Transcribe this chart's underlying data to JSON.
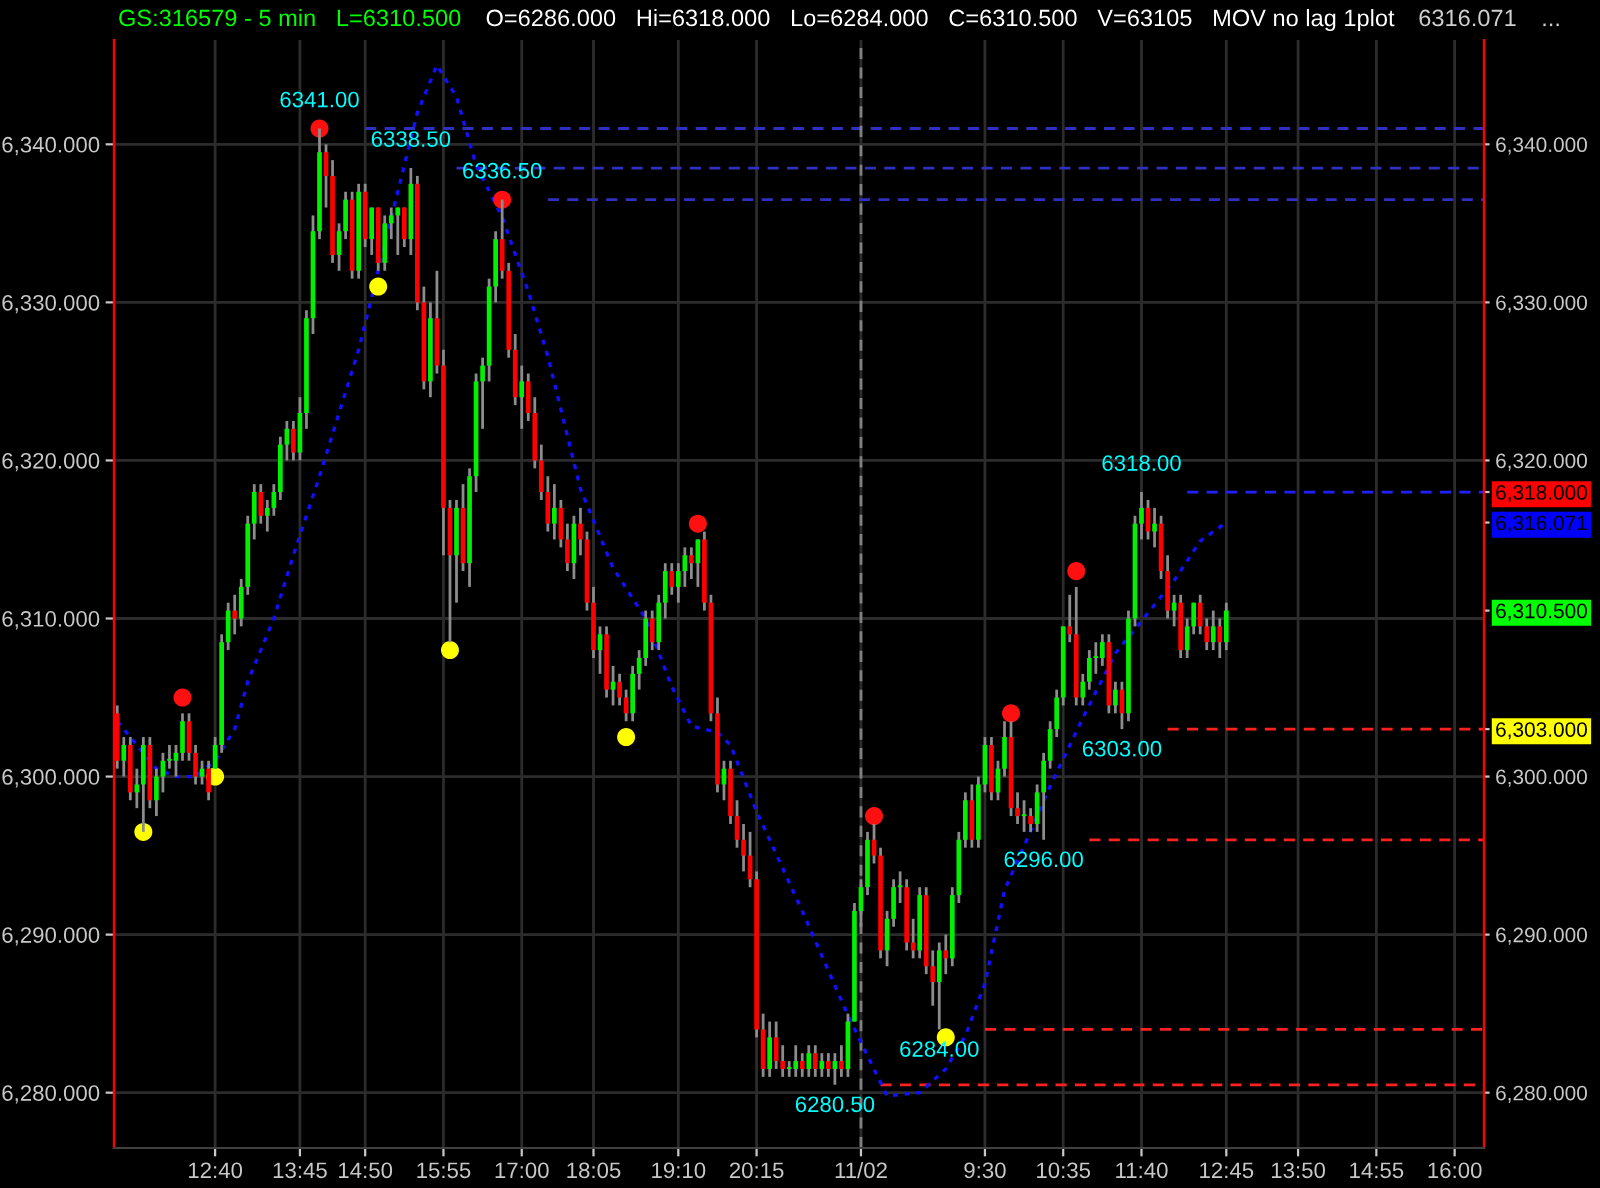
{
  "chart_data": {
    "type": "candlestick",
    "title": "GS:316579 - 5 min   L=6310.500",
    "subtitle": "O=6286.000   Hi=6318.000   Lo=6284.000   C=6310.500   V=63105   MOV no lag 1plot",
    "annotations": [
      "6316.071",
      "..."
    ],
    "categories": [
      null,
      null,
      null,
      null,
      null,
      null,
      null,
      null,
      null,
      null,
      null,
      null,
      null,
      null,
      null,
      "12:40",
      null,
      null,
      null,
      null,
      null,
      null,
      null,
      null,
      null,
      null,
      null,
      null,
      "13:45",
      null,
      null,
      null,
      null,
      null,
      null,
      null,
      null,
      null,
      "14:50",
      null,
      null,
      null,
      null,
      null,
      null,
      null,
      null,
      null,
      null,
      null,
      "15:55",
      null,
      null,
      null,
      null,
      null,
      null,
      null,
      null,
      null,
      null,
      null,
      "17:00",
      null,
      null,
      null,
      null,
      null,
      null,
      null,
      null,
      null,
      null,
      "18:05",
      null,
      null,
      null,
      null,
      null,
      null,
      null,
      null,
      null,
      null,
      null,
      null,
      "19:10",
      null,
      null,
      null,
      null,
      null,
      null,
      null,
      null,
      null,
      null,
      null,
      "20:15",
      null,
      null,
      null,
      null,
      null,
      null,
      null,
      null,
      null,
      null,
      null,
      null,
      null,
      null,
      null,
      "11/02",
      null,
      null,
      null,
      null,
      null,
      null,
      null,
      null,
      null,
      null,
      null,
      null,
      null,
      null,
      null,
      null,
      null,
      null,
      "9:30",
      null,
      null,
      null,
      null,
      null,
      null,
      null,
      null,
      null,
      null,
      null,
      "10:35",
      null,
      null,
      null,
      null,
      null,
      null,
      null,
      null,
      null,
      null,
      null,
      "11:40",
      null,
      null,
      null,
      null,
      null,
      null,
      null,
      null,
      null,
      null,
      null,
      null,
      "12:45",
      null,
      null,
      null,
      null,
      null,
      null,
      null,
      null,
      null,
      null,
      "13:50",
      null,
      null,
      null,
      null,
      null,
      null,
      null,
      null,
      null,
      null,
      null,
      "14:55",
      null,
      null,
      null,
      null,
      null,
      null,
      null,
      null,
      null,
      null,
      null,
      "16:00",
      null,
      null,
      null,
      null
    ],
    "ohlc": [
      [
        6304,
        6304.5,
        6300.5,
        6301
      ],
      [
        6301,
        6302.5,
        6300,
        6302
      ],
      [
        6302,
        6302.5,
        6298.5,
        6299
      ],
      [
        6299,
        6300.5,
        6298,
        6299.5
      ],
      [
        6299.5,
        6302.5,
        6296.5,
        6302
      ],
      [
        6302,
        6302.5,
        6298,
        6298.5
      ],
      [
        6298.5,
        6300.5,
        6297.5,
        6300
      ],
      [
        6300,
        6301.5,
        6299,
        6301
      ],
      [
        6301,
        6302,
        6300.5,
        6301
      ],
      [
        6301,
        6302,
        6300,
        6301.5
      ],
      [
        6301.5,
        6304,
        6301,
        6303.5
      ],
      [
        6303.5,
        6304,
        6301,
        6301.5
      ],
      [
        6301.5,
        6302,
        6299.5,
        6300
      ],
      [
        6300,
        6301,
        6299.5,
        6300.5
      ],
      [
        6300.5,
        6301,
        6298.5,
        6299
      ],
      [
        6300.5,
        6302.5,
        6300.5,
        6302
      ],
      [
        6302,
        6309,
        6301.5,
        6308.5
      ],
      [
        6308.5,
        6311,
        6308,
        6310.5
      ],
      [
        6310.5,
        6311.5,
        6309,
        6310
      ],
      [
        6310,
        6312.5,
        6309.5,
        6312
      ],
      [
        6312,
        6316.5,
        6311.5,
        6316
      ],
      [
        6316,
        6318.5,
        6315,
        6318
      ],
      [
        6318,
        6318.5,
        6316,
        6316.5
      ],
      [
        6316.5,
        6317.5,
        6315.5,
        6317
      ],
      [
        6317,
        6318.5,
        6316.5,
        6318
      ],
      [
        6318,
        6321.5,
        6317.5,
        6321
      ],
      [
        6321,
        6322.5,
        6320,
        6322
      ],
      [
        6322,
        6322.5,
        6320,
        6320.5
      ],
      [
        6320.5,
        6324,
        6320,
        6323
      ],
      [
        6323,
        6329.5,
        6322,
        6329
      ],
      [
        6329,
        6335.5,
        6328,
        6334.5
      ],
      [
        6334.5,
        6341,
        6334,
        6339.5
      ],
      [
        6339.5,
        6340,
        6336,
        6338
      ],
      [
        6338,
        6339,
        6332.5,
        6333
      ],
      [
        6333,
        6335,
        6332,
        6334.5
      ],
      [
        6334.5,
        6337,
        6334,
        6336.5
      ],
      [
        6336.5,
        6337,
        6331.5,
        6332
      ],
      [
        6332,
        6337.5,
        6331.5,
        6337
      ],
      [
        6337,
        6337.5,
        6333.5,
        6334
      ],
      [
        6334,
        6336,
        6333,
        6336
      ],
      [
        6336,
        6336,
        6332,
        6332.5
      ],
      [
        6332.5,
        6335.5,
        6332,
        6335
      ],
      [
        6335,
        6336,
        6334,
        6335.5
      ],
      [
        6335.5,
        6336,
        6333,
        6336
      ],
      [
        6336,
        6336,
        6333.5,
        6334
      ],
      [
        6334,
        6338.5,
        6333,
        6337.5
      ],
      [
        6337.5,
        6338,
        6329.5,
        6330
      ],
      [
        6330,
        6331,
        6324.5,
        6325
      ],
      [
        6325,
        6330,
        6324,
        6329
      ],
      [
        6329,
        6332,
        6325.5,
        6326
      ],
      [
        6326,
        6327,
        6314,
        6317
      ],
      [
        6317,
        6317.5,
        6308.5,
        6314
      ],
      [
        6314,
        6317.5,
        6311,
        6317
      ],
      [
        6317,
        6318.5,
        6313,
        6313.5
      ],
      [
        6313.5,
        6319.5,
        6312,
        6319
      ],
      [
        6319,
        6325.5,
        6318,
        6325
      ],
      [
        6325,
        6326.5,
        6322,
        6326
      ],
      [
        6326,
        6331.5,
        6325,
        6331
      ],
      [
        6331,
        6334.5,
        6330,
        6334
      ],
      [
        6334,
        6336.5,
        6331.5,
        6332
      ],
      [
        6332,
        6332.5,
        6326.5,
        6327
      ],
      [
        6327,
        6328,
        6323.5,
        6324
      ],
      [
        6324,
        6326,
        6322,
        6325
      ],
      [
        6325,
        6325.5,
        6322.5,
        6323
      ],
      [
        6323,
        6324,
        6319.5,
        6320
      ],
      [
        6320,
        6321,
        6317.5,
        6318
      ],
      [
        6318,
        6319,
        6315.5,
        6316
      ],
      [
        6316,
        6318.5,
        6315,
        6317
      ],
      [
        6317,
        6317.5,
        6314.5,
        6315
      ],
      [
        6315,
        6316,
        6313,
        6313.5
      ],
      [
        6313.5,
        6316.5,
        6312.5,
        6316
      ],
      [
        6316,
        6317,
        6314,
        6315
      ],
      [
        6315,
        6315.5,
        6310.5,
        6311
      ],
      [
        6311,
        6312,
        6307.5,
        6308
      ],
      [
        6308,
        6309.5,
        6306.5,
        6309
      ],
      [
        6309,
        6309.5,
        6305,
        6305.5
      ],
      [
        6305.5,
        6307,
        6304.5,
        6306
      ],
      [
        6306,
        6306.5,
        6304.5,
        6305
      ],
      [
        6305,
        6305.5,
        6303.5,
        6304
      ],
      [
        6304,
        6307,
        6303.5,
        6306.5
      ],
      [
        6306.5,
        6308,
        6305.5,
        6307.5
      ],
      [
        6307.5,
        6310.5,
        6307,
        6310
      ],
      [
        6310,
        6310.5,
        6308,
        6308.5
      ],
      [
        6308.5,
        6311.5,
        6308,
        6311
      ],
      [
        6311,
        6313.5,
        6310,
        6313
      ],
      [
        6313,
        6313.5,
        6311.5,
        6312
      ],
      [
        6312,
        6313.5,
        6311,
        6313
      ],
      [
        6313,
        6314.5,
        6312,
        6314
      ],
      [
        6314,
        6314.5,
        6312.5,
        6313.5
      ],
      [
        6313.5,
        6315,
        6312,
        6315
      ],
      [
        6315,
        6315.5,
        6310.5,
        6311
      ],
      [
        6311,
        6311.5,
        6303.5,
        6304
      ],
      [
        6304,
        6305,
        6299,
        6299.5
      ],
      [
        6299.5,
        6301,
        6298.5,
        6300.5
      ],
      [
        6300.5,
        6301,
        6297,
        6297.5
      ],
      [
        6297.5,
        6298.5,
        6295.5,
        6296
      ],
      [
        6296,
        6297,
        6294,
        6295
      ],
      [
        6295,
        6296.5,
        6293,
        6293.5
      ],
      [
        6293.5,
        6294,
        6283.5,
        6284
      ],
      [
        6284,
        6285,
        6281,
        6281.5
      ],
      [
        6281.5,
        6284.5,
        6281,
        6283.5
      ],
      [
        6283.5,
        6284.5,
        6281.5,
        6282
      ],
      [
        6282,
        6283,
        6281,
        6281.5
      ],
      [
        6281.5,
        6282,
        6281,
        6281.5
      ],
      [
        6281.5,
        6283,
        6281,
        6282
      ],
      [
        6282,
        6282.5,
        6281,
        6281.5
      ],
      [
        6281.5,
        6283,
        6281,
        6282.5
      ],
      [
        6282.5,
        6283,
        6281,
        6281.5
      ],
      [
        6281.5,
        6282.5,
        6281,
        6282
      ],
      [
        6282,
        6282.5,
        6281,
        6281.5
      ],
      [
        6281.5,
        6282.5,
        6280.5,
        6282
      ],
      [
        6282,
        6283,
        6281,
        6281.5
      ],
      [
        6281.5,
        6285,
        6281,
        6284.5
      ],
      [
        6284.5,
        6292,
        6284.5,
        6291.5
      ],
      [
        6291.5,
        6293.5,
        6290.5,
        6293
      ],
      [
        6293,
        6296.5,
        6292.5,
        6296
      ],
      [
        6296,
        6297,
        6294.5,
        6295
      ],
      [
        6295,
        6295.5,
        6288.5,
        6289
      ],
      [
        6289,
        6291.5,
        6288,
        6291
      ],
      [
        6291,
        6293.5,
        6290.5,
        6293
      ],
      [
        6293,
        6294,
        6292,
        6293
      ],
      [
        6293,
        6293.5,
        6289,
        6289.5
      ],
      [
        6289.5,
        6291,
        6288.5,
        6289
      ],
      [
        6289,
        6293,
        6288.5,
        6292.5
      ],
      [
        6292.5,
        6293,
        6287.5,
        6288
      ],
      [
        6288,
        6289,
        6285.5,
        6287
      ],
      [
        6287,
        6289.5,
        6284,
        6289
      ],
      [
        6289,
        6290,
        6287.5,
        6288.5
      ],
      [
        6288.5,
        6293,
        6288,
        6292.5
      ],
      [
        6292.5,
        6296.5,
        6292,
        6296
      ],
      [
        6296,
        6299,
        6295.5,
        6298.5
      ],
      [
        6298.5,
        6299.5,
        6295.5,
        6296
      ],
      [
        6296,
        6300,
        6295.5,
        6299.5
      ],
      [
        6299.5,
        6302.5,
        6299,
        6302
      ],
      [
        6302,
        6302.5,
        6298.5,
        6299
      ],
      [
        6299,
        6301,
        6298.5,
        6300.5
      ],
      [
        6300.5,
        6303.5,
        6300,
        6302.5
      ],
      [
        6302.5,
        6303.5,
        6297.5,
        6298
      ],
      [
        6298,
        6299,
        6297,
        6297.5
      ],
      [
        6297.5,
        6298.5,
        6296.5,
        6297.5
      ],
      [
        6297.5,
        6298,
        6296.5,
        6297
      ],
      [
        6297,
        6299.5,
        6296.5,
        6299
      ],
      [
        6299,
        6301.5,
        6296,
        6301
      ],
      [
        6301,
        6303.5,
        6300.5,
        6303
      ],
      [
        6303,
        6305.5,
        6302.5,
        6305
      ],
      [
        6305,
        6309.5,
        6304.5,
        6309.5
      ],
      [
        6309.5,
        6311.5,
        6308.5,
        6309
      ],
      [
        6309,
        6312,
        6304.5,
        6305
      ],
      [
        6305,
        6306.5,
        6304.5,
        6306
      ],
      [
        6306,
        6308,
        6305.5,
        6307.5
      ],
      [
        6307.5,
        6308.5,
        6306.5,
        6307.5
      ],
      [
        6307.5,
        6309,
        6307,
        6308.5
      ],
      [
        6308.5,
        6309,
        6304,
        6304.5
      ],
      [
        6304.5,
        6306,
        6304,
        6305.5
      ],
      [
        6305.5,
        6306,
        6303,
        6304
      ],
      [
        6304,
        6310.5,
        6303.5,
        6310
      ],
      [
        6310,
        6316.5,
        6309.5,
        6316
      ],
      [
        6316,
        6318,
        6315,
        6317
      ],
      [
        6317,
        6317.5,
        6315,
        6315.5
      ],
      [
        6315.5,
        6317,
        6314.5,
        6316
      ],
      [
        6316,
        6316.5,
        6312.5,
        6313
      ],
      [
        6313,
        6314,
        6310,
        6310.5
      ],
      [
        6310.5,
        6311.5,
        6309.5,
        6311
      ],
      [
        6311,
        6311.5,
        6307.5,
        6308
      ],
      [
        6308,
        6310,
        6307.5,
        6309.5
      ],
      [
        6309.5,
        6311,
        6309,
        6311
      ],
      [
        6311,
        6311.5,
        6309,
        6309.5
      ],
      [
        6309.5,
        6310,
        6308,
        6308.5
      ],
      [
        6308.5,
        6310.5,
        6308,
        6309.5
      ],
      [
        6309.5,
        6310,
        6307.5,
        6308.5
      ],
      [
        6308.5,
        6311,
        6308,
        6310.5
      ],
      null,
      null,
      null,
      null,
      null,
      null,
      null,
      null,
      null,
      null,
      null,
      null,
      null,
      null,
      null,
      null,
      null,
      null,
      null,
      null,
      null,
      null,
      null,
      null,
      null,
      null,
      null,
      null,
      null,
      null,
      null,
      null,
      null,
      null,
      null,
      null,
      null,
      null,
      null
    ],
    "series": [
      {
        "type": "line",
        "color": "#1010ff",
        "line_style": "dotted",
        "values": [
          6303.5,
          null,
          null,
          6302,
          null,
          null,
          6300.5,
          null,
          null,
          6300,
          null,
          null,
          6300,
          null,
          null,
          6301,
          null,
          null,
          6303,
          null,
          6306,
          null,
          null,
          null,
          6310,
          null,
          null,
          6314,
          null,
          null,
          null,
          6319,
          null,
          null,
          6323,
          null,
          null,
          6327,
          null,
          null,
          6332,
          null,
          null,
          6337,
          null,
          null,
          6342,
          null,
          null,
          6345,
          null,
          null,
          6343,
          null,
          null,
          6338.7,
          null,
          null,
          null,
          6335.4,
          null,
          null,
          null,
          6330.7,
          null,
          null,
          6326.6,
          null,
          null,
          null,
          null,
          6318.2,
          null,
          null,
          null,
          null,
          6313.2,
          null,
          null,
          null,
          null,
          6310,
          null,
          null,
          null,
          6305.7,
          null,
          null,
          6303.2,
          null,
          null,
          null,
          6302.8,
          null,
          6302,
          null,
          null,
          null,
          6297.8,
          null,
          null,
          null,
          null,
          null,
          null,
          6291.5,
          null,
          null,
          null,
          null,
          null,
          null,
          6284.9,
          null,
          null,
          null,
          null,
          null,
          6279.8,
          null,
          null,
          null,
          null,
          6280,
          null,
          null,
          null,
          6281.5,
          null,
          null,
          6283.6,
          null,
          null,
          6286.9,
          null,
          null,
          6292.8,
          null,
          null,
          6295.6,
          null,
          null,
          null,
          6299.4,
          null,
          null,
          null,
          null,
          6303.7,
          null,
          null,
          null,
          null,
          6307.8,
          null,
          null,
          null,
          null,
          null,
          null,
          null,
          null,
          6312.4,
          null,
          null,
          null,
          6314.9,
          null,
          null,
          null,
          6316.071,
          null,
          null,
          null,
          null,
          null,
          null,
          null,
          null,
          null,
          null,
          null,
          null,
          null,
          null,
          null,
          null,
          null,
          null,
          null,
          null,
          null,
          null,
          null,
          null,
          null,
          null,
          null,
          null,
          null,
          null,
          null,
          null,
          null,
          null,
          null,
          null,
          null,
          null,
          null
        ]
      },
      {
        "type": "scatter",
        "color": "#ff1010",
        "marker": "circle",
        "values": [
          null,
          null,
          null,
          null,
          null,
          null,
          null,
          null,
          null,
          null,
          6305,
          null,
          null,
          null,
          null,
          null,
          null,
          null,
          null,
          null,
          null,
          null,
          null,
          null,
          null,
          null,
          null,
          null,
          null,
          null,
          null,
          6341,
          null,
          null,
          null,
          null,
          null,
          null,
          null,
          null,
          null,
          null,
          null,
          null,
          null,
          null,
          null,
          null,
          null,
          null,
          null,
          null,
          null,
          null,
          null,
          null,
          null,
          null,
          null,
          6336.5,
          null,
          null,
          null,
          null,
          null,
          null,
          null,
          null,
          null,
          null,
          null,
          null,
          null,
          null,
          null,
          null,
          null,
          null,
          null,
          null,
          null,
          null,
          null,
          null,
          null,
          null,
          null,
          null,
          null,
          6316,
          null,
          null,
          null,
          null,
          null,
          null,
          null,
          null,
          null,
          null,
          null,
          null,
          null,
          null,
          null,
          null,
          null,
          null,
          null,
          null,
          null,
          null,
          null,
          null,
          null,
          null,
          6297.5,
          null,
          null,
          null,
          null,
          null,
          null,
          null,
          null,
          null,
          null,
          null,
          null,
          null,
          null,
          null,
          null,
          null,
          null,
          null,
          null,
          6304,
          null,
          null,
          null,
          null,
          null,
          null,
          null,
          null,
          null,
          6313,
          null,
          null,
          null,
          null,
          null,
          null,
          null,
          null,
          null,
          null,
          null,
          null,
          null,
          null,
          null,
          null,
          null,
          null,
          null,
          null,
          null,
          null,
          null,
          null,
          null,
          null,
          null,
          null,
          null,
          null,
          null,
          null,
          null,
          null,
          null,
          null,
          null,
          null,
          null,
          null,
          null,
          null,
          null,
          null,
          null,
          null,
          null,
          null,
          null,
          null,
          null,
          null,
          null,
          null,
          null,
          null,
          null,
          null,
          null,
          null,
          null,
          null
        ]
      },
      {
        "type": "scatter",
        "color": "#ffff00",
        "marker": "circle",
        "values": [
          null,
          null,
          null,
          null,
          6296.5,
          null,
          null,
          null,
          null,
          null,
          null,
          null,
          null,
          null,
          null,
          6300,
          null,
          null,
          null,
          null,
          null,
          null,
          null,
          null,
          null,
          null,
          null,
          null,
          null,
          null,
          null,
          null,
          null,
          null,
          null,
          null,
          null,
          null,
          null,
          null,
          6331,
          null,
          null,
          null,
          null,
          null,
          null,
          null,
          null,
          null,
          null,
          6308,
          null,
          null,
          null,
          null,
          null,
          null,
          null,
          null,
          null,
          null,
          null,
          null,
          null,
          null,
          null,
          null,
          null,
          null,
          null,
          null,
          null,
          null,
          null,
          null,
          null,
          null,
          6302.5,
          null,
          null,
          null,
          null,
          null,
          null,
          null,
          null,
          null,
          null,
          null,
          null,
          null,
          null,
          null,
          null,
          null,
          null,
          null,
          null,
          null,
          null,
          null,
          null,
          null,
          null,
          null,
          null,
          null,
          null,
          null,
          null,
          null,
          null,
          null,
          null,
          null,
          null,
          null,
          null,
          null,
          null,
          null,
          null,
          null,
          null,
          null,
          null,
          6283.5,
          null,
          null,
          null,
          null,
          null,
          null,
          null,
          null,
          null,
          null,
          null,
          null,
          null,
          null,
          null,
          null,
          null,
          null,
          null,
          null,
          null,
          null,
          null,
          null,
          null,
          null,
          null,
          null,
          null,
          null,
          null,
          null,
          null,
          null,
          null,
          null,
          null,
          null,
          null,
          null,
          null,
          null,
          null,
          null,
          null,
          null,
          null,
          null,
          null,
          null,
          null,
          null,
          null,
          null,
          null,
          null,
          null,
          null,
          null,
          null,
          null,
          null,
          null,
          null,
          null,
          null,
          null,
          null,
          null,
          null,
          null,
          null,
          null,
          null,
          null,
          null,
          null,
          null,
          null,
          null,
          null,
          null
        ]
      }
    ],
    "ylim": [
      6276.5,
      6346.6
    ],
    "yticks": [
      {
        "value": 6280,
        "label": "6,280.000"
      },
      {
        "value": 6290,
        "label": "6,290.000"
      },
      {
        "value": 6300,
        "label": "6,300.000"
      },
      {
        "value": 6310,
        "label": "6,310.000"
      },
      {
        "value": 6320,
        "label": "6,320.000"
      },
      {
        "value": 6330,
        "label": "6,330.000"
      },
      {
        "value": 6340,
        "label": "6,340.000"
      }
    ],
    "y2lim": [
      6276.5,
      6346.6
    ],
    "y2ticks": [
      {
        "value": 6280,
        "label": "6,280.000"
      },
      {
        "value": 6290,
        "label": "6,290.000"
      },
      {
        "value": 6300,
        "label": "6,300.000"
      },
      {
        "value": 6303,
        "label": "6,303.000"
      },
      {
        "value": 6310.5,
        "label": "6,310.500"
      },
      {
        "value": 6316.071,
        "label": "6,316.071"
      },
      {
        "value": 6318,
        "label": "6,318.000"
      },
      {
        "value": 6320,
        "label": "6,320.000"
      },
      {
        "value": 6330,
        "label": "6,330.000"
      },
      {
        "value": 6340,
        "label": "6,340.000"
      }
    ],
    "ref_lines": [
      {
        "axis": "y",
        "value": 6341,
        "label": "6341.00",
        "color": "#3030c0",
        "line_style": "dashed"
      },
      {
        "axis": "y",
        "value": 6338.5,
        "label": "6338.50",
        "color": "#3030c0",
        "line_style": "dashed"
      },
      {
        "axis": "y",
        "value": 6336.5,
        "label": "6336.50",
        "color": "#3030c0",
        "line_style": "dashed"
      },
      {
        "axis": "y",
        "value": 6318,
        "label": "6318.00",
        "color": "#2020ff",
        "line_style": "dashed"
      },
      {
        "axis": "y",
        "value": 6303,
        "label": "6303.00",
        "color": "#ff2020",
        "line_style": "dashed"
      },
      {
        "axis": "y",
        "value": 6296,
        "label": "6296.00",
        "color": "#ff2020",
        "line_style": "dashed"
      },
      {
        "axis": "y",
        "value": 6284,
        "label": "6284.00",
        "color": "#ff2020",
        "line_style": "dashed"
      },
      {
        "axis": "y",
        "value": 6280.5,
        "label": "6280.50",
        "color": "#ff2020",
        "line_style": "dashed"
      },
      {
        "axis": "x",
        "value": "11/02",
        "color": "#808080",
        "line_style": "dashed"
      }
    ],
    "grid": true
  }
}
